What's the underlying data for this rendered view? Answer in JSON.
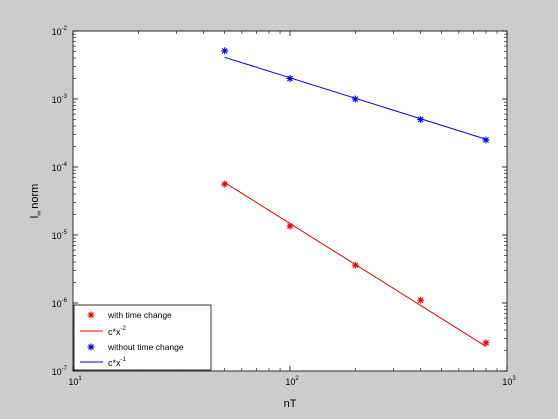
{
  "chart_data": {
    "type": "scatter",
    "xscale": "log",
    "yscale": "log",
    "xlabel": "nT",
    "ylabel_main": "l",
    "ylabel_sub": "∞",
    "ylabel_rest": "norm",
    "xlim": [
      10,
      1000
    ],
    "ylim": [
      1e-07,
      0.01
    ],
    "grid": false,
    "legend_position": "bottom-left",
    "x_ticks": [
      {
        "value": 10,
        "base": "10",
        "exp": "1"
      },
      {
        "value": 100,
        "base": "10",
        "exp": "2"
      },
      {
        "value": 1000,
        "base": "10",
        "exp": "3"
      }
    ],
    "y_ticks": [
      {
        "value": 1e-07,
        "base": "10",
        "exp": "-7"
      },
      {
        "value": 1e-06,
        "base": "10",
        "exp": "-6"
      },
      {
        "value": 1e-05,
        "base": "10",
        "exp": "-5"
      },
      {
        "value": 0.0001,
        "base": "10",
        "exp": "-4"
      },
      {
        "value": 0.001,
        "base": "10",
        "exp": "-3"
      },
      {
        "value": 0.01,
        "base": "10",
        "exp": "-2"
      }
    ],
    "series": [
      {
        "name": "with time change",
        "kind": "markers",
        "marker": "*",
        "color": "#e60000",
        "x": [
          50,
          100,
          200,
          400,
          800
        ],
        "y": [
          5.6e-05,
          1.35e-05,
          3.6e-06,
          1.1e-06,
          2.6e-07
        ]
      },
      {
        "name_base": "c*x",
        "name_exp": "-2",
        "kind": "line",
        "color": "#e60000",
        "x": [
          50,
          800
        ],
        "y": [
          5.9e-05,
          2.3e-07
        ]
      },
      {
        "name": "without time change",
        "kind": "markers",
        "marker": "*",
        "color": "#0000e6",
        "x": [
          50,
          100,
          200,
          400,
          800
        ],
        "y": [
          0.0051,
          0.002,
          0.001,
          0.0005,
          0.00025
        ]
      },
      {
        "name_base": "c*x",
        "name_exp": "-1",
        "kind": "line",
        "color": "#0000e6",
        "x": [
          50,
          800
        ],
        "y": [
          0.0041,
          0.000256
        ]
      }
    ]
  }
}
